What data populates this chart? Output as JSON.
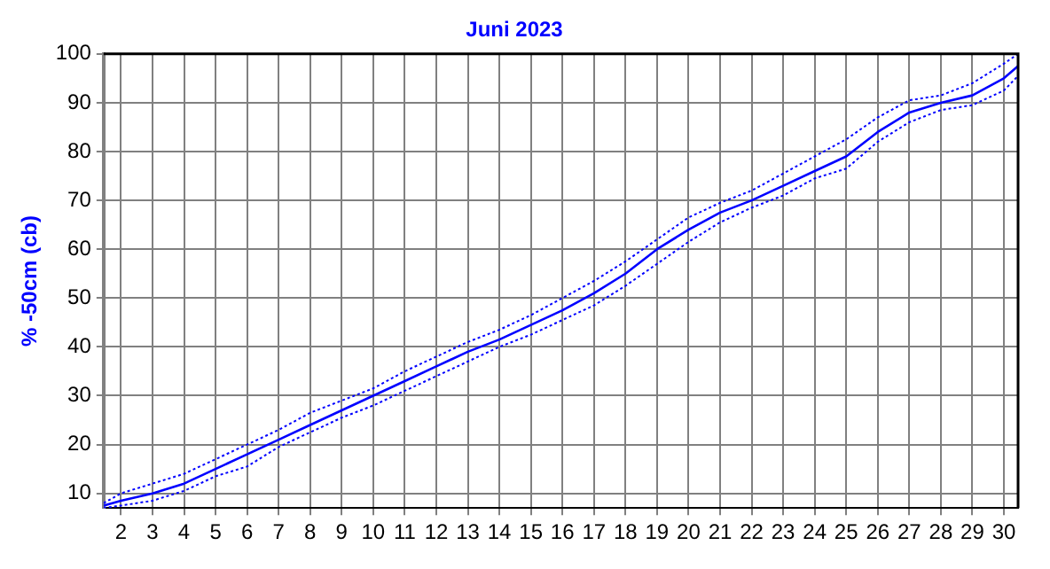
{
  "chart_data": {
    "type": "line",
    "title": "Juni 2023",
    "ylabel": "% -50cm (cb)",
    "x": [
      1.45,
      2,
      3,
      4,
      5,
      6,
      7,
      8,
      9,
      10,
      11,
      12,
      13,
      14,
      15,
      16,
      17,
      18,
      19,
      20,
      21,
      22,
      23,
      24,
      25,
      26,
      27,
      28,
      29,
      30,
      30.45
    ],
    "series": [
      {
        "color": "#0000ff",
        "line_style": "dotted",
        "values": [
          8,
          10,
          12,
          14,
          17,
          20,
          23,
          26.5,
          29,
          31.5,
          35,
          38,
          41,
          43.5,
          46.5,
          50,
          53.5,
          57.5,
          62,
          66.5,
          69.5,
          72,
          75.5,
          79,
          82.5,
          87,
          90.5,
          91.5,
          94,
          98,
          100
        ]
      },
      {
        "color": "#0000ff",
        "line_style": "solid",
        "values": [
          7.5,
          8.5,
          10,
          12,
          15,
          18,
          21,
          24,
          27,
          30,
          33,
          36,
          39,
          41.5,
          44.5,
          47.5,
          51,
          55,
          60,
          64,
          67.5,
          70,
          73,
          76,
          79,
          84,
          88,
          90,
          91.5,
          95,
          97.5
        ]
      },
      {
        "color": "#0000ff",
        "line_style": "dotted",
        "values": [
          7,
          7.5,
          8.5,
          10.5,
          13.5,
          15.5,
          19.5,
          22.5,
          25.5,
          28,
          31,
          34,
          37,
          40,
          42.5,
          45.5,
          48.5,
          52.5,
          57,
          61.5,
          65.5,
          68.5,
          71,
          74.5,
          76.5,
          82,
          86,
          88.5,
          89.5,
          92.5,
          95.5
        ]
      }
    ],
    "xlim": [
      1.45,
      30.45
    ],
    "xticks": [
      2,
      3,
      4,
      5,
      6,
      7,
      8,
      9,
      10,
      11,
      12,
      13,
      14,
      15,
      16,
      17,
      18,
      19,
      20,
      21,
      22,
      23,
      24,
      25,
      26,
      27,
      28,
      29,
      30
    ],
    "ylim": [
      7,
      100
    ],
    "yticks": [
      10,
      20,
      30,
      40,
      50,
      60,
      70,
      80,
      90,
      100
    ],
    "grid": true,
    "marker": "none"
  }
}
